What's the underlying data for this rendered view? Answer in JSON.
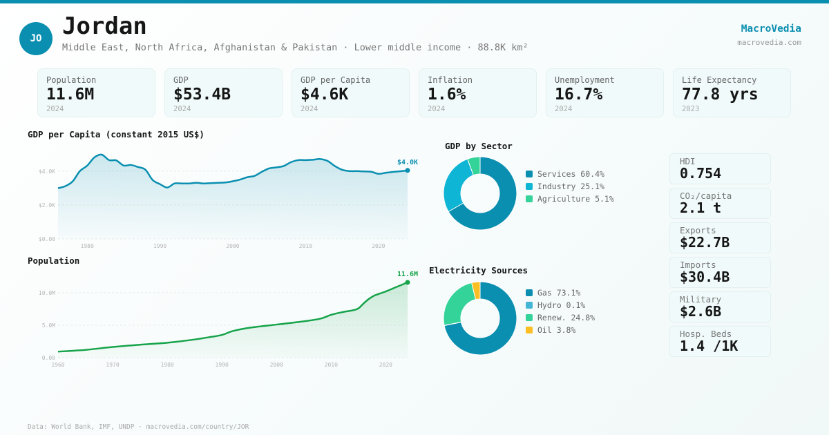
{
  "header": {
    "avatar_initials": "JO",
    "country": "Jordan",
    "subtitle": "Middle East, North Africa, Afghanistan & Pakistan · Lower middle income · 88.8K km²",
    "brand": "MacroVedia",
    "brand_url": "macrovedia.com"
  },
  "colors": {
    "accent": "#0a8fb0",
    "gdp_line": "#0a8fb0",
    "population_line": "#16a34a"
  },
  "kpis": [
    {
      "label": "Population",
      "value": "11.6M",
      "year": "2024"
    },
    {
      "label": "GDP",
      "value": "$53.4B",
      "year": "2024"
    },
    {
      "label": "GDP per Capita",
      "value": "$4.6K",
      "year": "2024"
    },
    {
      "label": "Inflation",
      "value": "1.6%",
      "year": "2024"
    },
    {
      "label": "Unemployment",
      "value": "16.7%",
      "year": "2024"
    },
    {
      "label": "Life Expectancy",
      "value": "77.8 yrs",
      "year": "2023"
    }
  ],
  "side_stats": [
    {
      "label": "HDI",
      "value": "0.754"
    },
    {
      "label": "CO₂/capita",
      "value": "2.1 t"
    },
    {
      "label": "Exports",
      "value": "$22.7B"
    },
    {
      "label": "Imports",
      "value": "$30.4B"
    },
    {
      "label": "Military",
      "value": "$2.6B"
    },
    {
      "label": "Hosp. Beds",
      "value": "1.4 /1K"
    }
  ],
  "footer": "Data: World Bank, IMF, UNDP · macrovedia.com/country/JOR",
  "chart_data": [
    {
      "id": "gdp_per_capita",
      "type": "area",
      "title": "GDP per Capita (constant 2015 US$)",
      "xlabel": "",
      "ylabel": "",
      "ylim": [
        0,
        5
      ],
      "yticks": [
        0,
        2,
        4
      ],
      "ytick_labels": [
        "$0.00",
        "$2.0K",
        "$4.0K"
      ],
      "xticks": [
        1980,
        1990,
        2000,
        2010,
        2020
      ],
      "xtick_labels": [
        "1980",
        "1990",
        "2000",
        "2010",
        "2020"
      ],
      "grid": true,
      "end_label": "$4.0K",
      "x": [
        1976,
        1977,
        1978,
        1979,
        1980,
        1981,
        1982,
        1983,
        1984,
        1985,
        1986,
        1987,
        1988,
        1989,
        1990,
        1991,
        1992,
        1993,
        1994,
        1995,
        1996,
        1997,
        1998,
        1999,
        2000,
        2001,
        2002,
        2003,
        2004,
        2005,
        2006,
        2007,
        2008,
        2009,
        2010,
        2011,
        2012,
        2013,
        2014,
        2015,
        2016,
        2017,
        2018,
        2019,
        2020,
        2021,
        2022,
        2023,
        2024
      ],
      "values": [
        2.99,
        3.11,
        3.39,
        4.0,
        4.32,
        4.81,
        4.97,
        4.65,
        4.63,
        4.33,
        4.36,
        4.24,
        4.08,
        3.47,
        3.23,
        3.03,
        3.27,
        3.27,
        3.27,
        3.31,
        3.27,
        3.29,
        3.31,
        3.33,
        3.4,
        3.5,
        3.64,
        3.72,
        3.96,
        4.16,
        4.22,
        4.3,
        4.53,
        4.65,
        4.65,
        4.67,
        4.71,
        4.6,
        4.3,
        4.08,
        4.0,
        4.0,
        3.98,
        3.96,
        3.84,
        3.9,
        3.95,
        3.99,
        4.04
      ],
      "unit": "thousand US$"
    },
    {
      "id": "population",
      "type": "area",
      "title": "Population",
      "xlabel": "",
      "ylabel": "",
      "ylim": [
        0,
        12
      ],
      "yticks": [
        0,
        5,
        10
      ],
      "ytick_labels": [
        "0.00",
        "5.0M",
        "10.0M"
      ],
      "xticks": [
        1960,
        1970,
        1980,
        1990,
        2000,
        2010,
        2020
      ],
      "xtick_labels": [
        "1960",
        "1970",
        "1980",
        "1990",
        "2000",
        "2010",
        "2020"
      ],
      "grid": true,
      "end_label": "11.6M",
      "x": [
        1960,
        1965,
        1970,
        1975,
        1980,
        1985,
        1988,
        1990,
        1992,
        1995,
        2000,
        2005,
        2008,
        2010,
        2012,
        2014,
        2015,
        2016,
        2017,
        2018,
        2020,
        2022,
        2024
      ],
      "values": [
        0.93,
        1.2,
        1.65,
        2.0,
        2.3,
        2.8,
        3.2,
        3.5,
        4.1,
        4.6,
        5.1,
        5.6,
        6.0,
        6.6,
        7.0,
        7.3,
        7.6,
        8.4,
        9.1,
        9.6,
        10.2,
        10.9,
        11.6
      ],
      "unit": "million"
    },
    {
      "id": "gdp_by_sector",
      "type": "pie",
      "title": "GDP by Sector",
      "donut": true,
      "categories": [
        "Services",
        "Industry",
        "Agriculture"
      ],
      "values": [
        60.4,
        25.1,
        5.1
      ],
      "labels": [
        "Services 60.4%",
        "Industry 25.1%",
        "Agriculture 5.1%"
      ],
      "colors": [
        "#0a8fb0",
        "#0fb5d4",
        "#34d399"
      ],
      "legend": "right"
    },
    {
      "id": "electricity_sources",
      "type": "pie",
      "title": "Electricity Sources",
      "donut": true,
      "categories": [
        "Gas",
        "Hydro",
        "Renew.",
        "Oil"
      ],
      "values": [
        73.1,
        0.1,
        24.8,
        3.8
      ],
      "labels": [
        "Gas 73.1%",
        "Hydro 0.1%",
        "Renew. 24.8%",
        "Oil 3.8%"
      ],
      "colors": [
        "#0a8fb0",
        "#45b5d6",
        "#34d399",
        "#fbbf24"
      ],
      "legend": "right"
    }
  ]
}
